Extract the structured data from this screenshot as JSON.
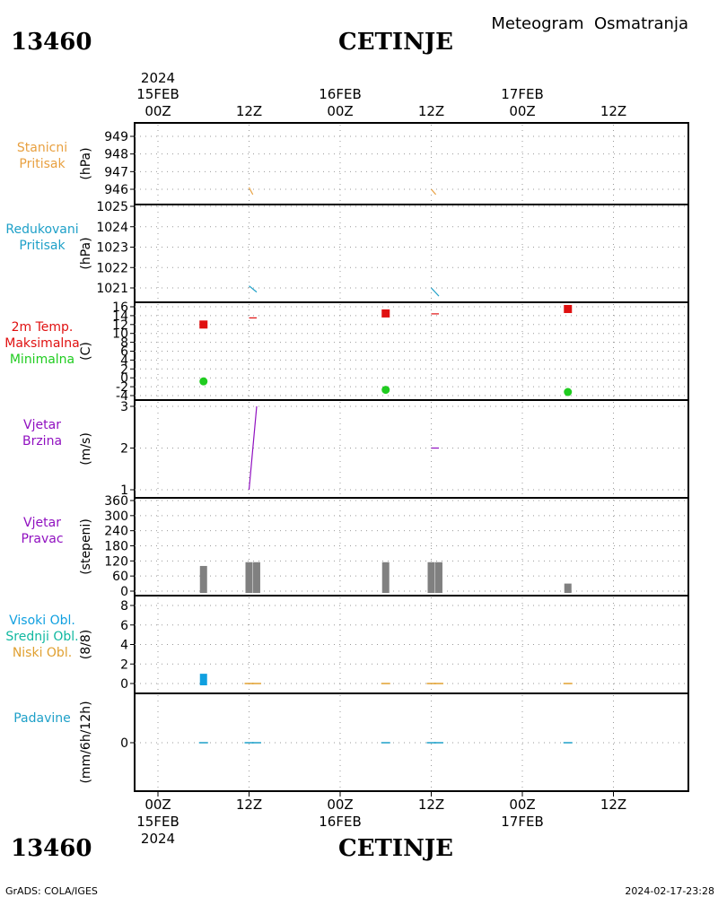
{
  "header": {
    "station_id": "13460",
    "station_name": "CETINJE",
    "meteogram_title": "Meteogram  Osmatranja"
  },
  "footer": {
    "station_id": "13460",
    "station_name": "CETINJE",
    "credit": "GrADS: COLA/IGES",
    "timestamp": "2024-02-17-23:28"
  },
  "time_axis": {
    "year": "2024",
    "ticks": [
      {
        "hour": "00Z",
        "date": "15FEB"
      },
      {
        "hour": "12Z",
        "date": ""
      },
      {
        "hour": "00Z",
        "date": "16FEB"
      },
      {
        "hour": "12Z",
        "date": ""
      },
      {
        "hour": "00Z",
        "date": "17FEB"
      },
      {
        "hour": "12Z",
        "date": ""
      }
    ]
  },
  "colors": {
    "station_pressure": "#e8a040",
    "reduced_pressure": "#1ea0c8",
    "max_temp": "#e01010",
    "min_temp": "#20cc20",
    "wind": "#9010c0",
    "direction_bar": "#808080",
    "high_cloud": "#10a0e0",
    "mid_cloud": "#10b8a0",
    "low_cloud": "#e0a030",
    "precip": "#1ea0c8"
  },
  "chart_data": [
    {
      "type": "line",
      "id": "stanicni",
      "labels": [
        {
          "text": "Stanicni",
          "color_key": "station_pressure"
        },
        {
          "text": "Pritisak",
          "color_key": "station_pressure"
        }
      ],
      "unit": "(hPa)",
      "ylim": [
        945.2,
        949.5
      ],
      "yticks": [
        946,
        947,
        948,
        949
      ],
      "series": [
        {
          "color_key": "station_pressure",
          "points": [
            [
              12,
              946.1
            ],
            [
              12.5,
              945.7
            ]
          ]
        },
        {
          "color_key": "station_pressure",
          "points": [
            [
              36,
              946.0
            ],
            [
              36.6,
              945.7
            ]
          ]
        }
      ]
    },
    {
      "type": "line",
      "id": "redukovani",
      "labels": [
        {
          "text": "Redukovani",
          "color_key": "reduced_pressure"
        },
        {
          "text": "Pritisak",
          "color_key": "reduced_pressure"
        }
      ],
      "unit": "(hPa)",
      "ylim": [
        1020.5,
        1025.1
      ],
      "yticks": [
        1021,
        1022,
        1023,
        1024,
        1025
      ],
      "series": [
        {
          "color_key": "reduced_pressure",
          "points": [
            [
              12,
              1021.1
            ],
            [
              13,
              1020.8
            ]
          ]
        },
        {
          "color_key": "reduced_pressure",
          "points": [
            [
              36,
              1021.0
            ],
            [
              37,
              1020.6
            ]
          ]
        }
      ]
    },
    {
      "type": "scatter",
      "id": "temperatura",
      "labels": [
        {
          "text": "2m Temp.",
          "color_key": "max_temp"
        },
        {
          "text": "Maksimalna",
          "color_key": "max_temp"
        },
        {
          "text": "Minimalna",
          "color_key": "min_temp"
        }
      ],
      "unit": "(C)",
      "ylim": [
        -4.5,
        16.5
      ],
      "yticks": [
        -4,
        -2,
        0,
        2,
        4,
        6,
        8,
        10,
        12,
        14,
        16
      ],
      "ytick_labels": [
        "-4",
        "-2",
        "0",
        "2",
        "4",
        "6",
        "8",
        "10",
        "12",
        "14",
        "16"
      ],
      "maxima": [
        {
          "x": 6,
          "y": 12
        },
        {
          "x": 30,
          "y": 14.5
        },
        {
          "x": 54,
          "y": 15.5
        }
      ],
      "minima": [
        {
          "x": 6,
          "y": -0.8
        },
        {
          "x": 30,
          "y": -2.7
        },
        {
          "x": 54,
          "y": -3.2
        }
      ],
      "series": [
        {
          "color_key": "max_temp",
          "points": [
            [
              12,
              13.5
            ],
            [
              13,
              13.5
            ]
          ]
        },
        {
          "color_key": "max_temp",
          "points": [
            [
              36,
              14.4
            ],
            [
              37,
              14.4
            ]
          ]
        }
      ]
    },
    {
      "type": "line",
      "id": "vjetar_brzina",
      "labels": [
        {
          "text": "Vjetar",
          "color_key": "wind"
        },
        {
          "text": "Brzina",
          "color_key": "wind"
        }
      ],
      "unit": "(m/s)",
      "ylim": [
        1,
        3
      ],
      "yticks": [
        1,
        2,
        3
      ],
      "series": [
        {
          "color_key": "wind",
          "points": [
            [
              12,
              1
            ],
            [
              13,
              3
            ]
          ]
        },
        {
          "color_key": "wind",
          "points": [
            [
              36,
              2
            ],
            [
              37,
              2
            ]
          ]
        }
      ]
    },
    {
      "type": "bar",
      "id": "vjetar_pravac",
      "labels": [
        {
          "text": "Vjetar",
          "color_key": "wind"
        },
        {
          "text": "Pravac",
          "color_key": "wind"
        }
      ],
      "unit": "(stepeni)",
      "ylim": [
        -10,
        360
      ],
      "yticks": [
        0,
        60,
        120,
        180,
        240,
        300,
        360
      ],
      "bars": [
        {
          "x": 6,
          "value": 100
        },
        {
          "x": 12,
          "value": 115
        },
        {
          "x": 13,
          "value": 115
        },
        {
          "x": 30,
          "value": 115
        },
        {
          "x": 36,
          "value": 115
        },
        {
          "x": 37,
          "value": 115
        },
        {
          "x": 54,
          "value": 30
        }
      ]
    },
    {
      "type": "bar",
      "id": "oblacnost",
      "labels": [
        {
          "text": "Visoki Obl.",
          "color_key": "high_cloud"
        },
        {
          "text": "Srednji Obl.",
          "color_key": "mid_cloud"
        },
        {
          "text": "Niski Obl.",
          "color_key": "low_cloud"
        }
      ],
      "unit": "(8/8)",
      "ylim": [
        -0.8,
        8.8
      ],
      "yticks": [
        0,
        2,
        4,
        6,
        8
      ],
      "bars": [
        {
          "x": 6,
          "value": 1,
          "color_key": "high_cloud"
        }
      ],
      "baseline_marks": [
        12,
        13,
        30,
        36,
        37,
        54
      ]
    },
    {
      "type": "bar",
      "id": "padavine",
      "labels": [
        {
          "text": "Padavine",
          "color_key": "precip"
        }
      ],
      "unit": "(mm/6h/12h)",
      "ylim": [
        -5,
        5
      ],
      "yticks": [
        0
      ],
      "baseline_marks": [
        6,
        12,
        13,
        30,
        36,
        37,
        54
      ]
    }
  ]
}
